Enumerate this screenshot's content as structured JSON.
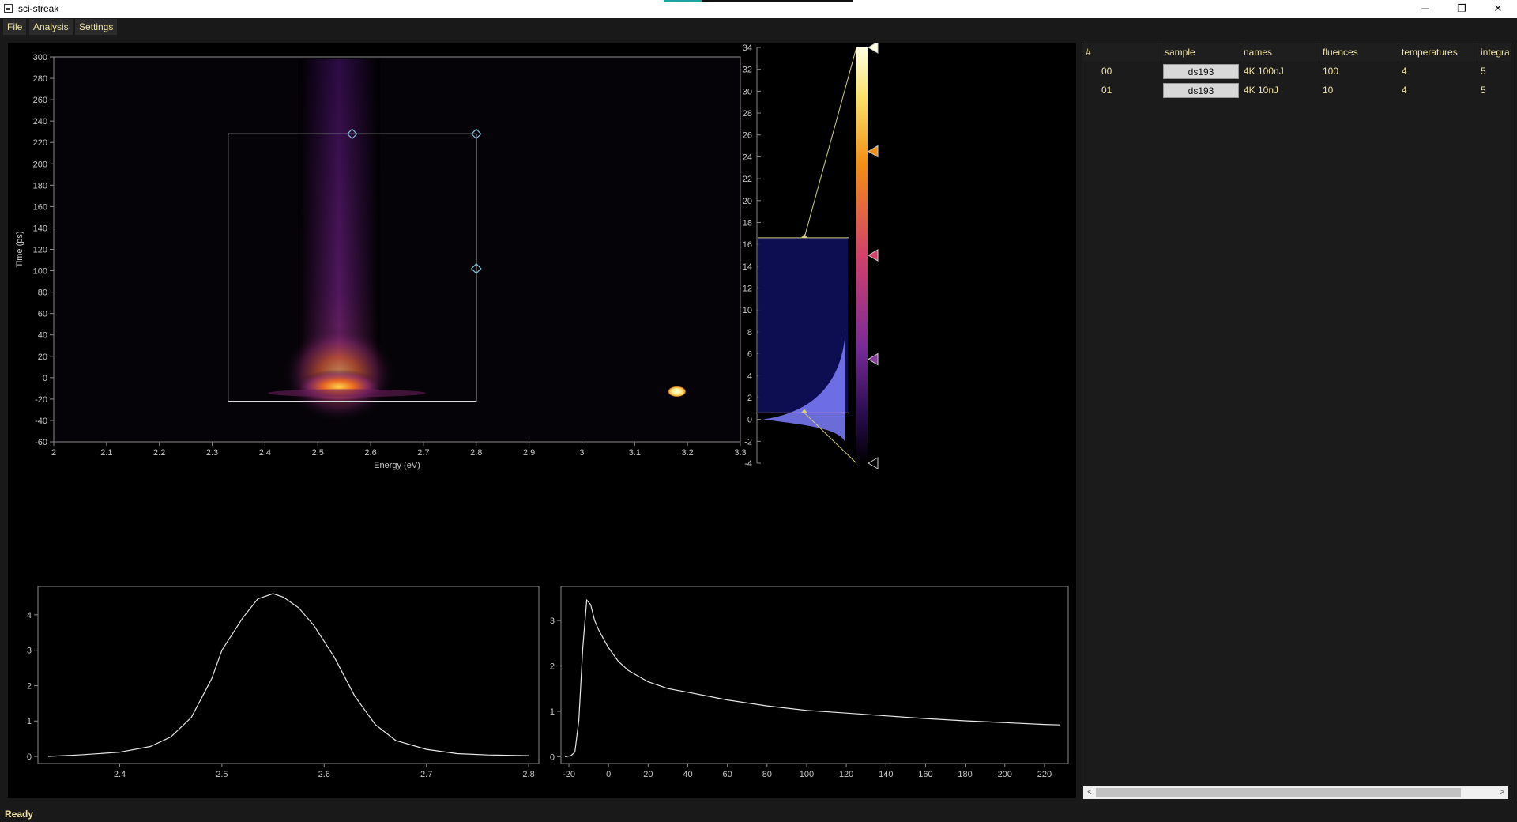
{
  "window": {
    "title": "sci-streak",
    "minimize": "─",
    "maximize": "❐",
    "close": "✕"
  },
  "menu": [
    "File",
    "Analysis",
    "Settings"
  ],
  "status": "Ready",
  "colors": {
    "accent": "#f0e4a0",
    "roi": "#d8d8d8",
    "handle": "#7fc0d6",
    "lut_line": "#d6d07a",
    "histogram": "#7f7fff"
  },
  "table": {
    "headers": [
      "#",
      "sample",
      "names",
      "fluences",
      "temperatures",
      "integra"
    ],
    "rows": [
      {
        "index": "00",
        "sample": "ds193",
        "name": "4K 100nJ",
        "fluence": "100",
        "temperature": "4",
        "integration": "5"
      },
      {
        "index": "01",
        "sample": "ds193",
        "name": "4K 10nJ",
        "fluence": "10",
        "temperature": "4",
        "integration": "5"
      }
    ],
    "scroll_left": "<",
    "scroll_right": ">"
  },
  "chart_data": [
    {
      "type": "heatmap",
      "title": "",
      "xlabel": "Energy (eV)",
      "ylabel": "Time (ps)",
      "xlim": [
        2.0,
        3.3
      ],
      "ylim": [
        -60,
        300
      ],
      "xticks": [
        2,
        2.1,
        2.2,
        2.3,
        2.4,
        2.5,
        2.6,
        2.7,
        2.8,
        2.9,
        3,
        3.1,
        3.2,
        3.3
      ],
      "yticks": [
        300,
        280,
        260,
        240,
        220,
        200,
        180,
        160,
        140,
        120,
        100,
        80,
        60,
        40,
        20,
        0,
        -20,
        -40,
        -60
      ],
      "colormap": "inferno",
      "emission_peak": {
        "energy": 2.54,
        "time": -10
      },
      "bright_spot": {
        "energy": 3.18,
        "time": -13
      },
      "roi": {
        "x": [
          2.33,
          2.8
        ],
        "y": [
          -22,
          228
        ]
      },
      "roi_handles": [
        {
          "x": 2.565,
          "y": 228
        },
        {
          "x": 2.8,
          "y": 228
        },
        {
          "x": 2.8,
          "y": 102
        }
      ]
    },
    {
      "type": "area",
      "title": "",
      "ylim": [
        -4,
        34
      ],
      "yticks": [
        34,
        32,
        30,
        28,
        26,
        24,
        22,
        20,
        18,
        16,
        14,
        12,
        10,
        8,
        6,
        4,
        2,
        0,
        -2,
        -4
      ],
      "levels": [
        0.6,
        16.6
      ],
      "colormap_markers": [
        "#ffffe0",
        "#f28f12",
        "#d4406a",
        "#8a3a9c",
        "#000000"
      ]
    },
    {
      "type": "line",
      "title": "",
      "xlim": [
        2.32,
        2.81
      ],
      "ylim": [
        -0.2,
        4.8
      ],
      "xticks": [
        2.4,
        2.5,
        2.6,
        2.7,
        2.8
      ],
      "yticks": [
        0,
        1,
        2,
        3,
        4
      ],
      "series": [
        {
          "x": [
            2.33,
            2.36,
            2.4,
            2.43,
            2.45,
            2.47,
            2.49,
            2.5,
            2.52,
            2.535,
            2.55,
            2.56,
            2.575,
            2.59,
            2.61,
            2.63,
            2.65,
            2.67,
            2.7,
            2.73,
            2.76,
            2.8
          ],
          "values": [
            0.0,
            0.04,
            0.12,
            0.28,
            0.55,
            1.1,
            2.2,
            3.0,
            3.9,
            4.45,
            4.6,
            4.5,
            4.2,
            3.7,
            2.8,
            1.7,
            0.9,
            0.45,
            0.2,
            0.08,
            0.04,
            0.02
          ]
        }
      ]
    },
    {
      "type": "line",
      "title": "",
      "xlim": [
        -24,
        232
      ],
      "ylim": [
        -0.15,
        3.75
      ],
      "xticks": [
        -20,
        0,
        20,
        40,
        60,
        80,
        100,
        120,
        140,
        160,
        180,
        200,
        220
      ],
      "yticks": [
        0,
        1,
        2,
        3
      ],
      "series": [
        {
          "x": [
            -22,
            -19,
            -17,
            -15,
            -13,
            -11,
            -9,
            -7,
            -5,
            -2,
            0,
            5,
            10,
            20,
            30,
            40,
            60,
            80,
            100,
            120,
            140,
            160,
            180,
            200,
            220,
            228
          ],
          "values": [
            0.0,
            0.02,
            0.1,
            0.8,
            2.4,
            3.45,
            3.35,
            3.0,
            2.8,
            2.55,
            2.4,
            2.1,
            1.9,
            1.65,
            1.5,
            1.42,
            1.25,
            1.12,
            1.02,
            0.96,
            0.9,
            0.84,
            0.79,
            0.75,
            0.71,
            0.7
          ]
        }
      ]
    }
  ]
}
